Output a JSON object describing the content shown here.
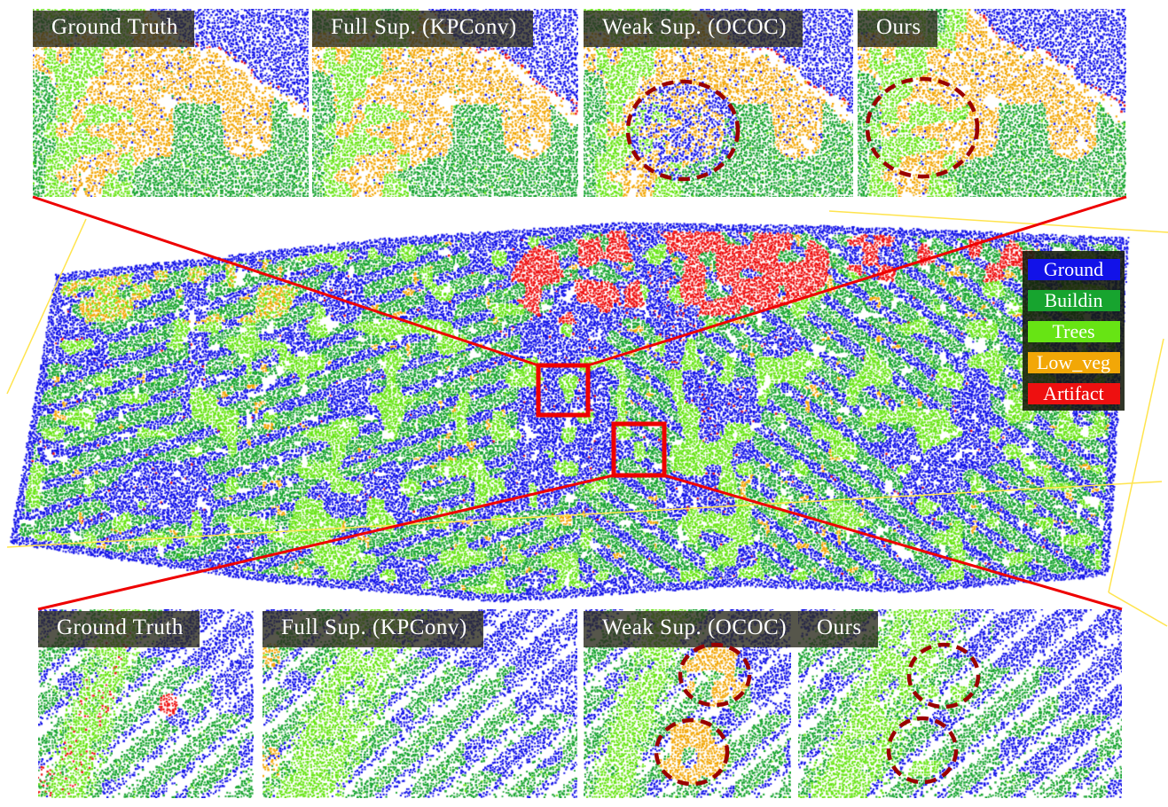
{
  "figure_description": "Point cloud semantic segmentation qualitative comparison figure",
  "top_row": {
    "panels": [
      {
        "label": "Ground Truth"
      },
      {
        "label": "Full Sup. (KPConv)"
      },
      {
        "label": "Weak Sup. (OCOC)"
      },
      {
        "label": "Ours"
      }
    ]
  },
  "bottom_row": {
    "panels": [
      {
        "label": "Ground Truth"
      },
      {
        "label": "Full Sup. (KPConv)"
      },
      {
        "label": "Weak Sup. (OCOC)"
      },
      {
        "label": "Ours"
      }
    ]
  },
  "legend": {
    "items": [
      {
        "label": "Ground",
        "color": "#1212E8"
      },
      {
        "label": "Buildin",
        "color": "#17A42F"
      },
      {
        "label": "Trees",
        "color": "#67E414"
      },
      {
        "label": "Low_veg",
        "color": "#F2A707"
      },
      {
        "label": "Artifact",
        "color": "#EE1010"
      }
    ]
  },
  "colors": {
    "highlight_box": "#EE0000",
    "connector_line": "#EE0000",
    "annotation_ellipse": "#990000",
    "wireframe": "#FFE44D",
    "label_text": "#FFFFFF",
    "background": "#FFFFFF"
  }
}
